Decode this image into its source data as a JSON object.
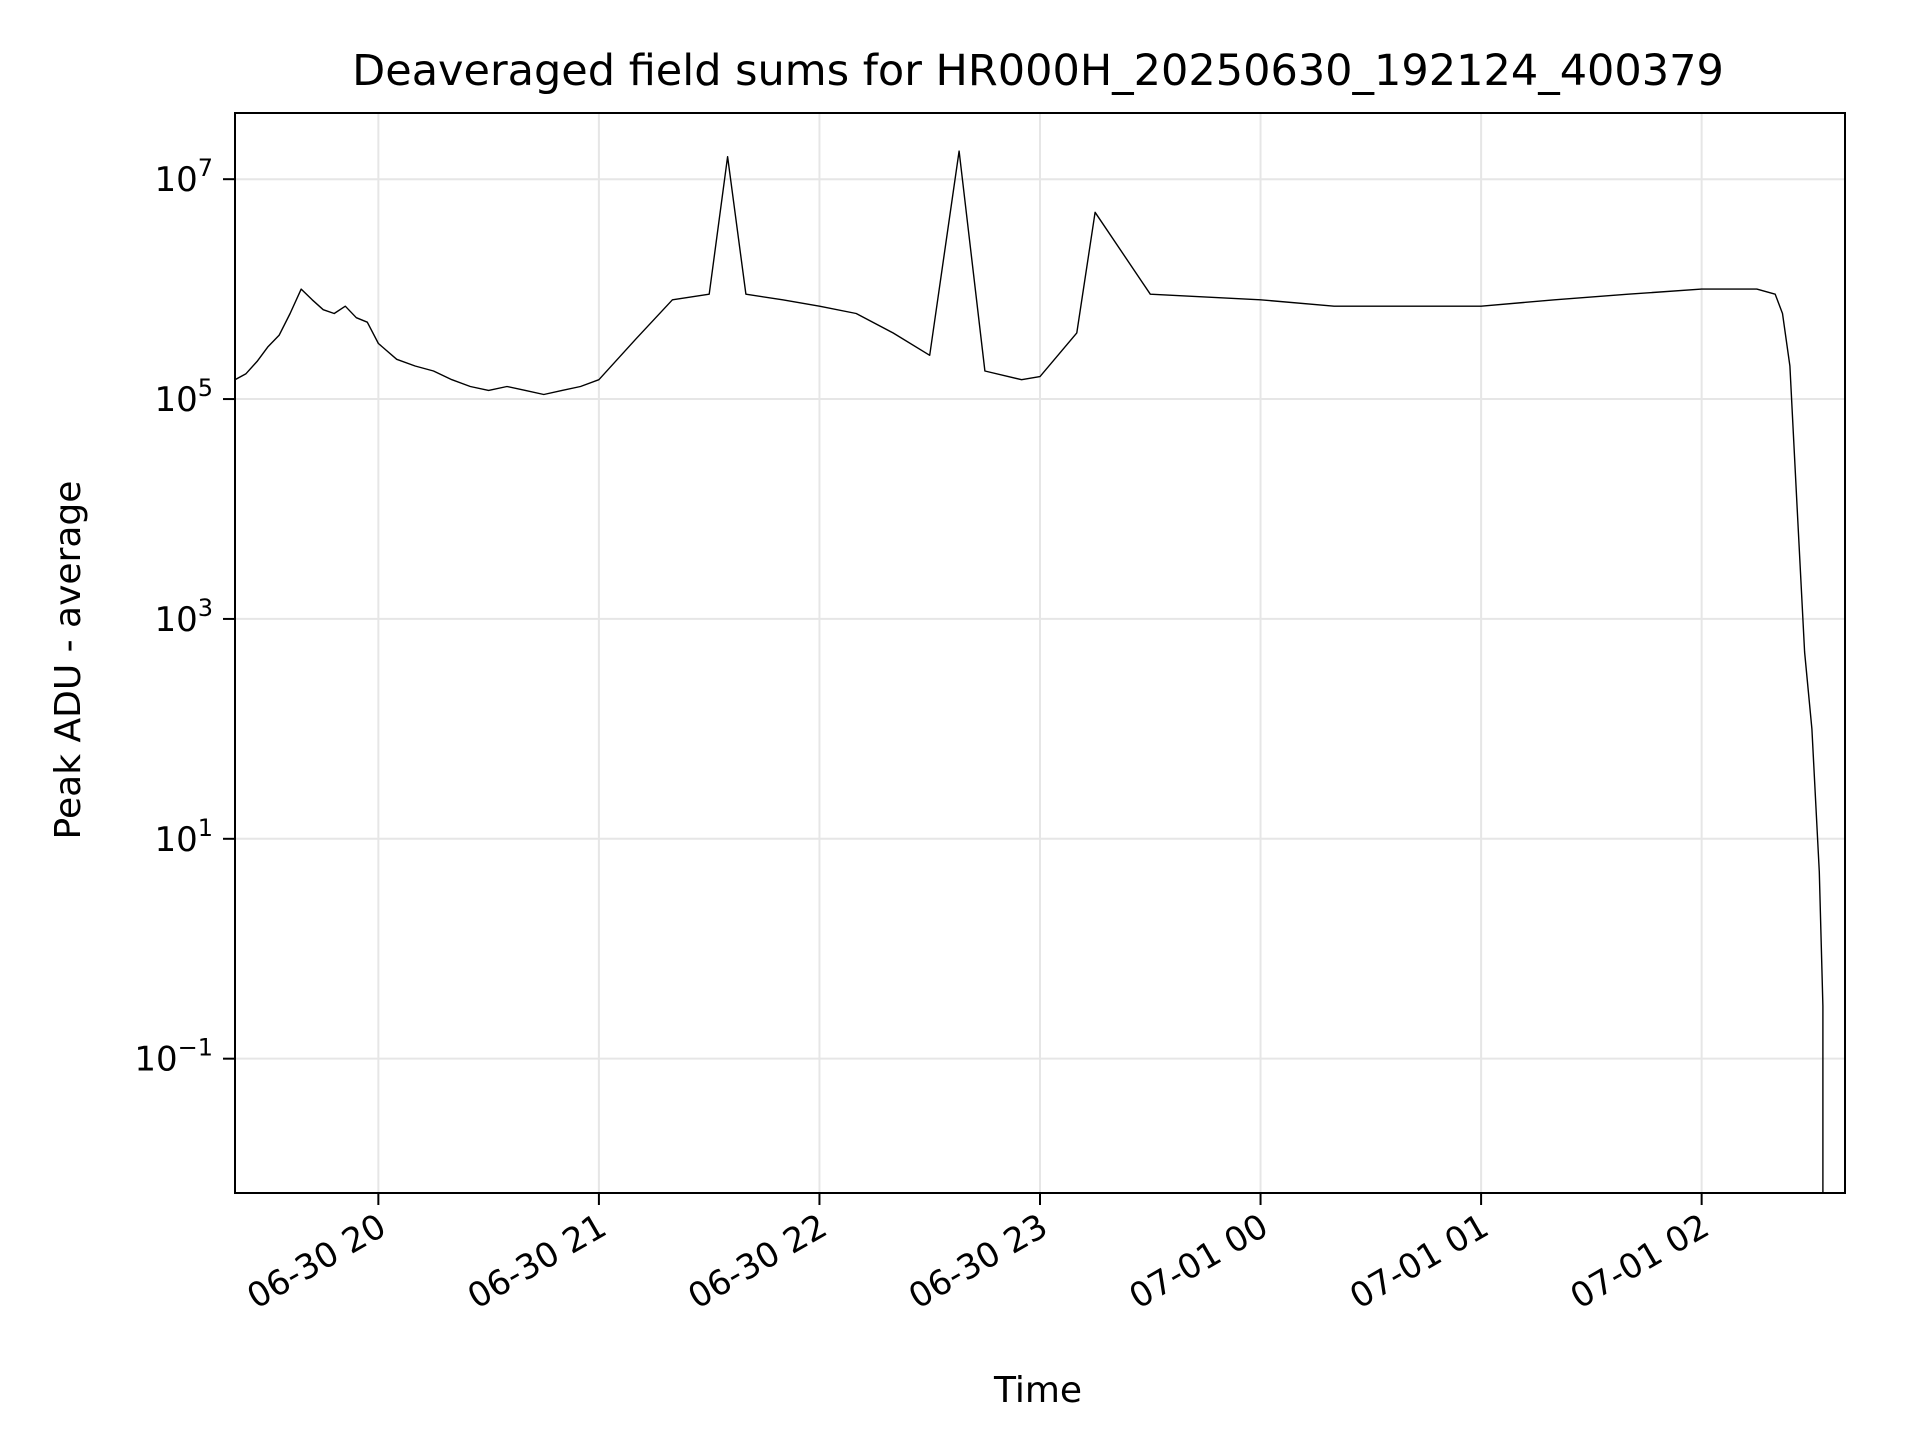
{
  "chart_data": {
    "type": "line",
    "title": "Deaveraged field sums for HR000H_20250630_192124_400379",
    "xlabel": "Time",
    "ylabel": "Peak ADU - average",
    "yscale": "log",
    "ylim": [
      0.006,
      40000000.0
    ],
    "xlim": [
      "2025-06-30 19:21",
      "2025-07-01 02:39"
    ],
    "grid": true,
    "x_ticks": [
      {
        "value": "2025-06-30 20:00",
        "label": "06-30 20"
      },
      {
        "value": "2025-06-30 21:00",
        "label": "06-30 21"
      },
      {
        "value": "2025-06-30 22:00",
        "label": "06-30 22"
      },
      {
        "value": "2025-06-30 23:00",
        "label": "06-30 23"
      },
      {
        "value": "2025-07-01 00:00",
        "label": "07-01 00"
      },
      {
        "value": "2025-07-01 01:00",
        "label": "07-01 01"
      },
      {
        "value": "2025-07-01 02:00",
        "label": "07-01 02"
      }
    ],
    "y_ticks": [
      {
        "value": 0.1,
        "base": "10",
        "exp": "−1"
      },
      {
        "value": 10,
        "base": "10",
        "exp": "1"
      },
      {
        "value": 1000,
        "base": "10",
        "exp": "3"
      },
      {
        "value": 100000,
        "base": "10",
        "exp": "5"
      },
      {
        "value": 10000000,
        "base": "10",
        "exp": "7"
      }
    ],
    "series": [
      {
        "color": "#000000",
        "points": [
          [
            "2025-06-30 19:21",
            150000
          ],
          [
            "2025-06-30 19:24",
            170000
          ],
          [
            "2025-06-30 19:27",
            220000
          ],
          [
            "2025-06-30 19:30",
            300000
          ],
          [
            "2025-06-30 19:33",
            380000
          ],
          [
            "2025-06-30 19:36",
            600000
          ],
          [
            "2025-06-30 19:39",
            1000000
          ],
          [
            "2025-06-30 19:42",
            800000
          ],
          [
            "2025-06-30 19:45",
            650000
          ],
          [
            "2025-06-30 19:48",
            600000
          ],
          [
            "2025-06-30 19:51",
            700000
          ],
          [
            "2025-06-30 19:54",
            550000
          ],
          [
            "2025-06-30 19:57",
            500000
          ],
          [
            "2025-06-30 20:00",
            320000
          ],
          [
            "2025-06-30 20:05",
            230000
          ],
          [
            "2025-06-30 20:10",
            200000
          ],
          [
            "2025-06-30 20:15",
            180000
          ],
          [
            "2025-06-30 20:20",
            150000
          ],
          [
            "2025-06-30 20:25",
            130000
          ],
          [
            "2025-06-30 20:30",
            120000
          ],
          [
            "2025-06-30 20:35",
            130000
          ],
          [
            "2025-06-30 20:40",
            120000
          ],
          [
            "2025-06-30 20:45",
            110000
          ],
          [
            "2025-06-30 20:50",
            120000
          ],
          [
            "2025-06-30 20:55",
            130000
          ],
          [
            "2025-06-30 21:00",
            150000
          ],
          [
            "2025-06-30 21:10",
            350000
          ],
          [
            "2025-06-30 21:20",
            800000
          ],
          [
            "2025-06-30 21:30",
            900000
          ],
          [
            "2025-06-30 21:35",
            16000000
          ],
          [
            "2025-06-30 21:40",
            900000
          ],
          [
            "2025-06-30 21:50",
            800000
          ],
          [
            "2025-06-30 22:00",
            700000
          ],
          [
            "2025-06-30 22:10",
            600000
          ],
          [
            "2025-06-30 22:20",
            400000
          ],
          [
            "2025-06-30 22:30",
            250000
          ],
          [
            "2025-06-30 22:38",
            18000000
          ],
          [
            "2025-06-30 22:45",
            180000
          ],
          [
            "2025-06-30 22:55",
            150000
          ],
          [
            "2025-06-30 23:00",
            160000
          ],
          [
            "2025-06-30 23:10",
            400000
          ],
          [
            "2025-06-30 23:15",
            5000000
          ],
          [
            "2025-06-30 23:30",
            900000
          ],
          [
            "2025-07-01 00:00",
            800000
          ],
          [
            "2025-07-01 00:20",
            700000
          ],
          [
            "2025-07-01 00:40",
            700000
          ],
          [
            "2025-07-01 01:00",
            700000
          ],
          [
            "2025-07-01 01:20",
            800000
          ],
          [
            "2025-07-01 01:40",
            900000
          ],
          [
            "2025-07-01 02:00",
            1000000
          ],
          [
            "2025-07-01 02:15",
            1000000
          ],
          [
            "2025-07-01 02:20",
            900000
          ],
          [
            "2025-07-01 02:22",
            600000
          ],
          [
            "2025-07-01 02:24",
            200000
          ],
          [
            "2025-07-01 02:26",
            10000
          ],
          [
            "2025-07-01 02:28",
            500
          ],
          [
            "2025-07-01 02:30",
            100
          ],
          [
            "2025-07-01 02:32",
            5
          ],
          [
            "2025-07-01 02:33",
            0.3
          ],
          [
            "2025-07-01 02:33",
            0.006
          ]
        ]
      }
    ]
  }
}
